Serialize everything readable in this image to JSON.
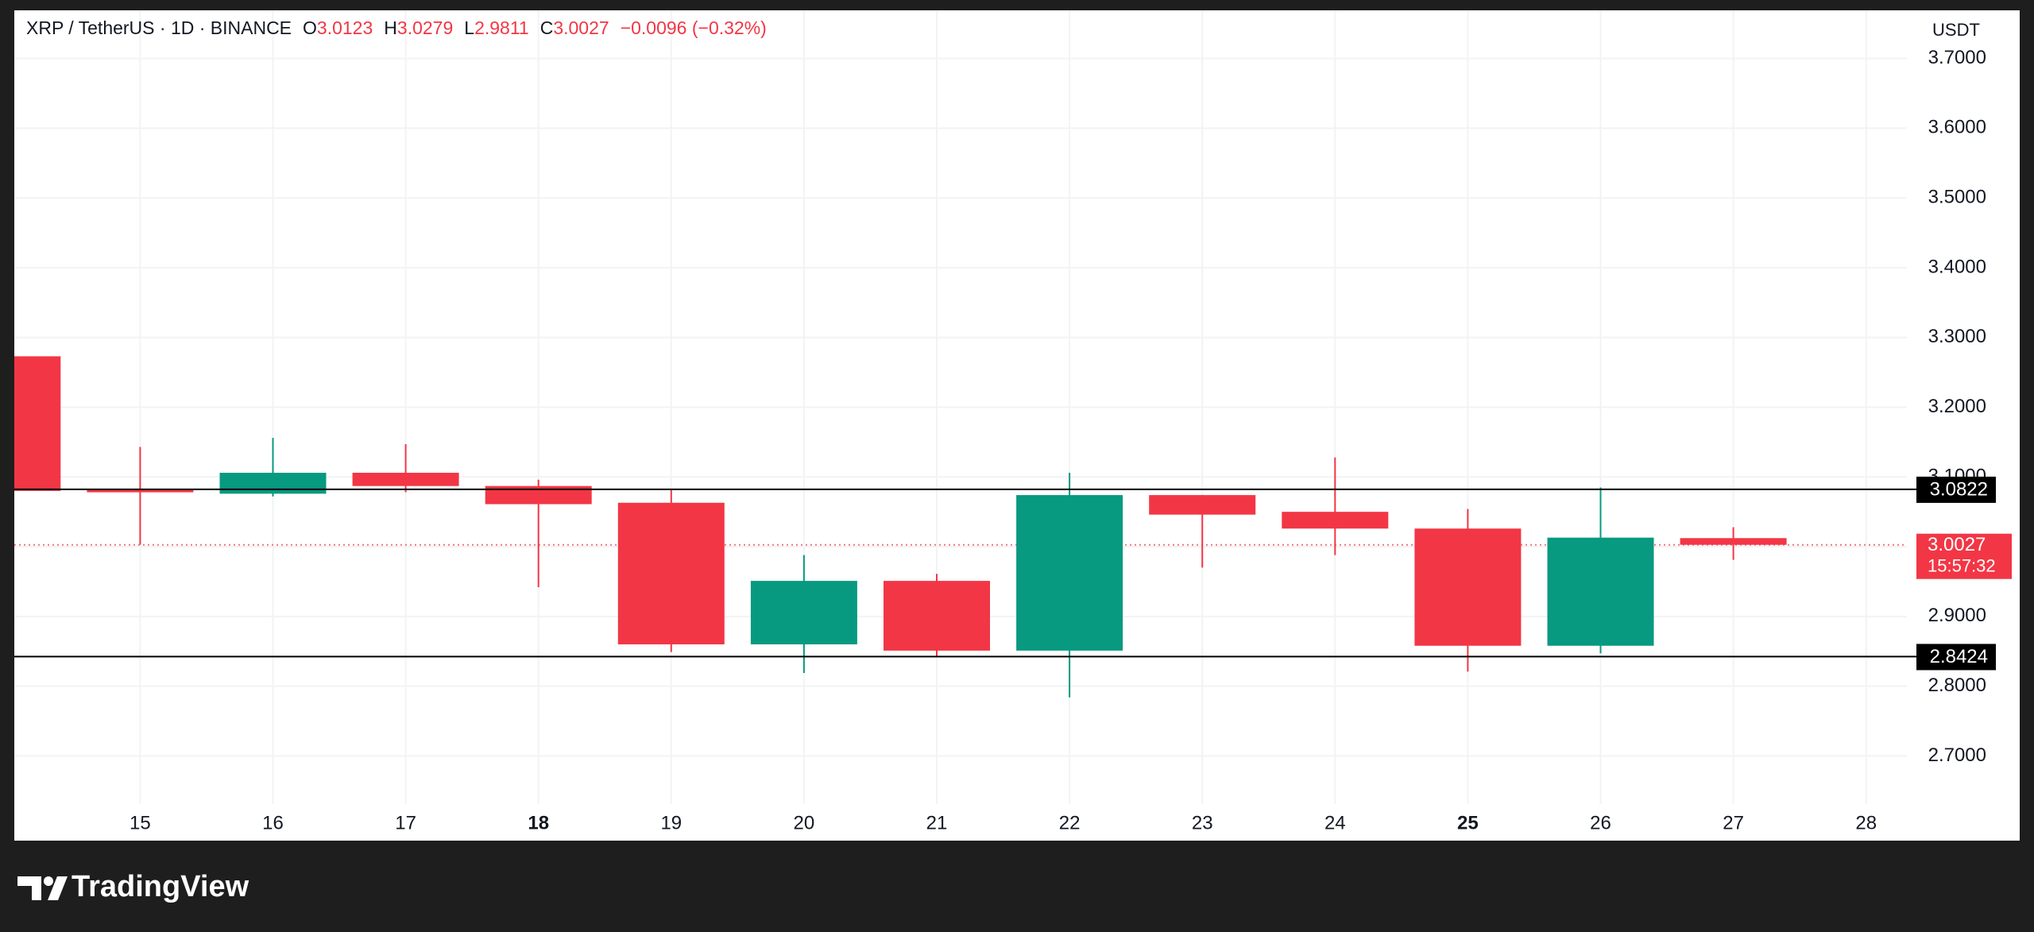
{
  "chart_data": {
    "type": "candlestick",
    "title": "XRP / TetherUS · 1D · BINANCE",
    "currency": "USDT",
    "ohlc_labels": {
      "open": "O",
      "high": "H",
      "low": "L",
      "close": "C"
    },
    "change": "−0.0096 (−0.32%)",
    "countdown": "15:57:32",
    "brand": "TradingView",
    "categories": [
      null,
      "15",
      "16",
      "17",
      "18",
      "19",
      "20",
      "21",
      "22",
      "23",
      "24",
      "25",
      "26",
      "27",
      "28"
    ],
    "bold_categories": [
      4,
      11
    ],
    "open": [
      3.273,
      3.083,
      3.076,
      3.106,
      3.087,
      3.063,
      2.86,
      2.951,
      2.851,
      3.074,
      3.05,
      3.026,
      2.858,
      3.0123,
      null
    ],
    "high": [
      3.273,
      3.143,
      3.156,
      3.147,
      3.096,
      3.081,
      2.988,
      2.961,
      3.106,
      3.074,
      3.128,
      3.054,
      3.085,
      3.0279,
      null
    ],
    "low": [
      3.08,
      3.003,
      3.072,
      3.078,
      2.942,
      2.849,
      2.819,
      2.843,
      2.784,
      2.97,
      2.988,
      2.821,
      2.847,
      2.9811,
      null
    ],
    "close": [
      3.08,
      3.078,
      3.106,
      3.087,
      3.061,
      2.86,
      2.951,
      2.851,
      3.074,
      3.046,
      3.026,
      2.858,
      3.013,
      3.0027,
      null
    ],
    "up_color": "#089981",
    "down_color": "#f23645",
    "levels": [
      3.0822,
      2.8424
    ],
    "ylim": [
      2.631,
      3.769
    ],
    "yticks": [
      {
        "value": 2.7,
        "label": "2.7000"
      },
      {
        "value": 2.8,
        "label": "2.8000"
      },
      {
        "value": 2.9,
        "label": "2.9000"
      },
      {
        "value": 3.0,
        "label": "3.0000"
      },
      {
        "value": 3.1,
        "label": "3.1000"
      },
      {
        "value": 3.2,
        "label": "3.2000"
      },
      {
        "value": 3.3,
        "label": "3.3000"
      },
      {
        "value": 3.4,
        "label": "3.4000"
      },
      {
        "value": 3.5,
        "label": "3.5000"
      },
      {
        "value": 3.6,
        "label": "3.6000"
      },
      {
        "value": 3.7,
        "label": "3.7000"
      }
    ],
    "grid": true
  }
}
